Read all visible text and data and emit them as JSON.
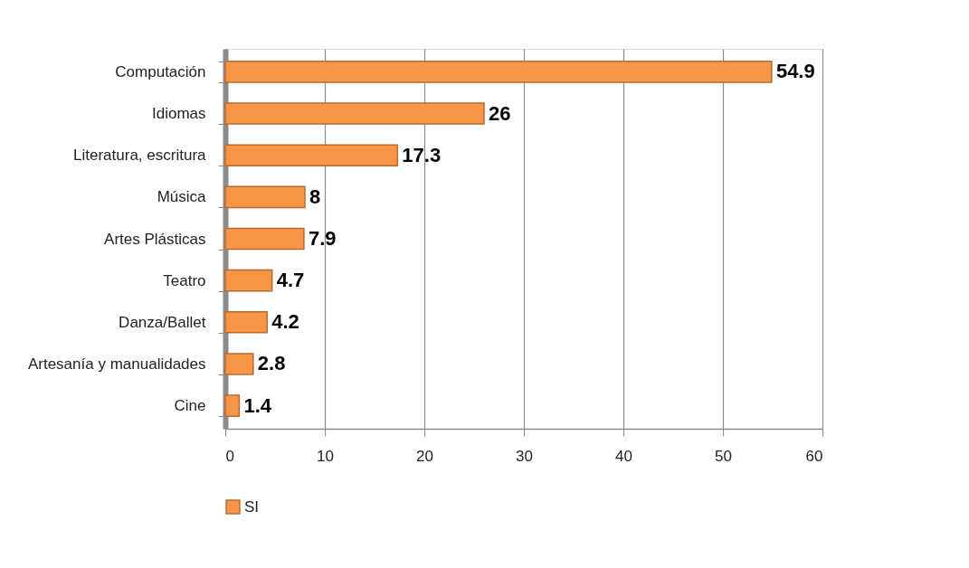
{
  "chart_data": {
    "type": "bar",
    "orientation": "horizontal",
    "categories": [
      "Computación",
      "Idiomas",
      "Literatura, escritura",
      "Música",
      "Artes Plásticas",
      "Teatro",
      "Danza/Ballet",
      "Artesanía y manualidades",
      "Cine"
    ],
    "series": [
      {
        "name": "SI",
        "color": "#f79646",
        "values": [
          54.9,
          26,
          17.3,
          8,
          7.9,
          4.7,
          4.2,
          2.8,
          1.4
        ]
      }
    ],
    "xlim": [
      0,
      60
    ],
    "xticks": [
      0,
      10,
      20,
      30,
      40,
      50,
      60
    ],
    "grid": "x",
    "legend": "bottom",
    "data_labels": true
  }
}
